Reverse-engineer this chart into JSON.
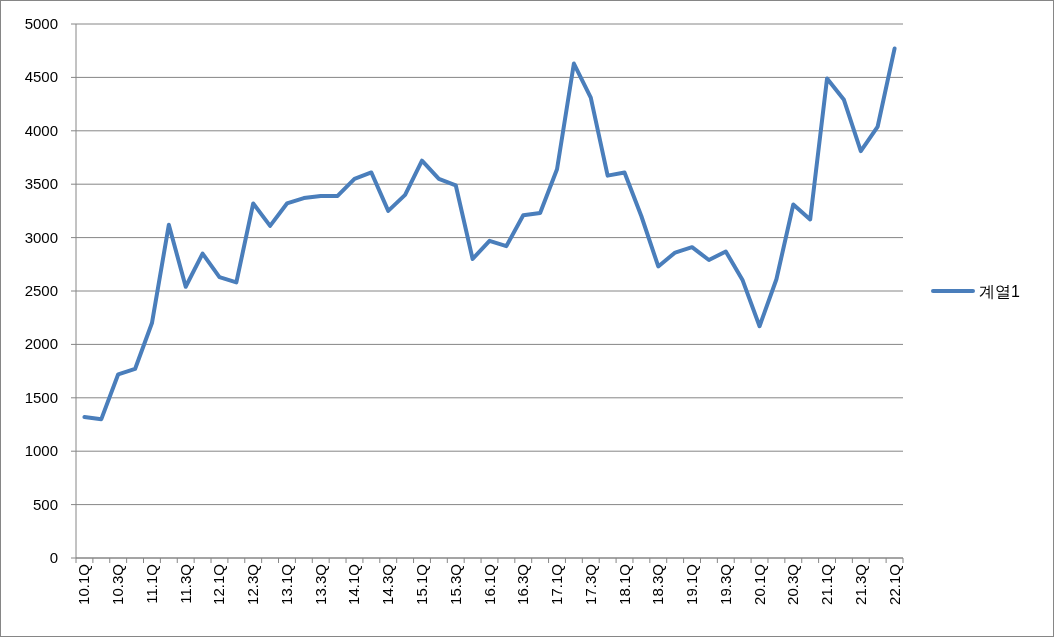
{
  "chart_data": {
    "type": "line",
    "categories": [
      "10.1Q",
      null,
      "10.3Q",
      null,
      "11.1Q",
      null,
      "11.3Q",
      null,
      "12.1Q",
      null,
      "12.3Q",
      null,
      "13.1Q",
      null,
      "13.3Q",
      null,
      "14.1Q",
      null,
      "14.3Q",
      null,
      "15.1Q",
      null,
      "15.3Q",
      null,
      "16.1Q",
      null,
      "16.3Q",
      null,
      "17.1Q",
      null,
      "17.3Q",
      null,
      "18.1Q",
      null,
      "18.3Q",
      null,
      "19.1Q",
      null,
      "19.3Q",
      null,
      "20.1Q",
      null,
      "20.3Q",
      null,
      "21.1Q",
      null,
      "21.3Q",
      null,
      "22.1Q"
    ],
    "series": [
      {
        "name": "계열1",
        "color": "#4a7ebb",
        "values": [
          1320,
          1300,
          1720,
          1770,
          2200,
          3120,
          2540,
          2850,
          2630,
          2580,
          3320,
          3110,
          3320,
          3370,
          3390,
          3390,
          3550,
          3610,
          3250,
          3400,
          3720,
          3550,
          3490,
          2800,
          2970,
          2920,
          3210,
          3230,
          3640,
          4630,
          4310,
          3580,
          3610,
          3200,
          2730,
          2860,
          2910,
          2790,
          2870,
          2600,
          2170,
          2610,
          3310,
          3170,
          4490,
          4290,
          3810,
          4040,
          4770
        ]
      }
    ],
    "ylim": [
      0,
      5000
    ],
    "yticks": [
      0,
      500,
      1000,
      1500,
      2000,
      2500,
      3000,
      3500,
      4000,
      4500,
      5000
    ],
    "grid": "y",
    "legend": "right"
  }
}
